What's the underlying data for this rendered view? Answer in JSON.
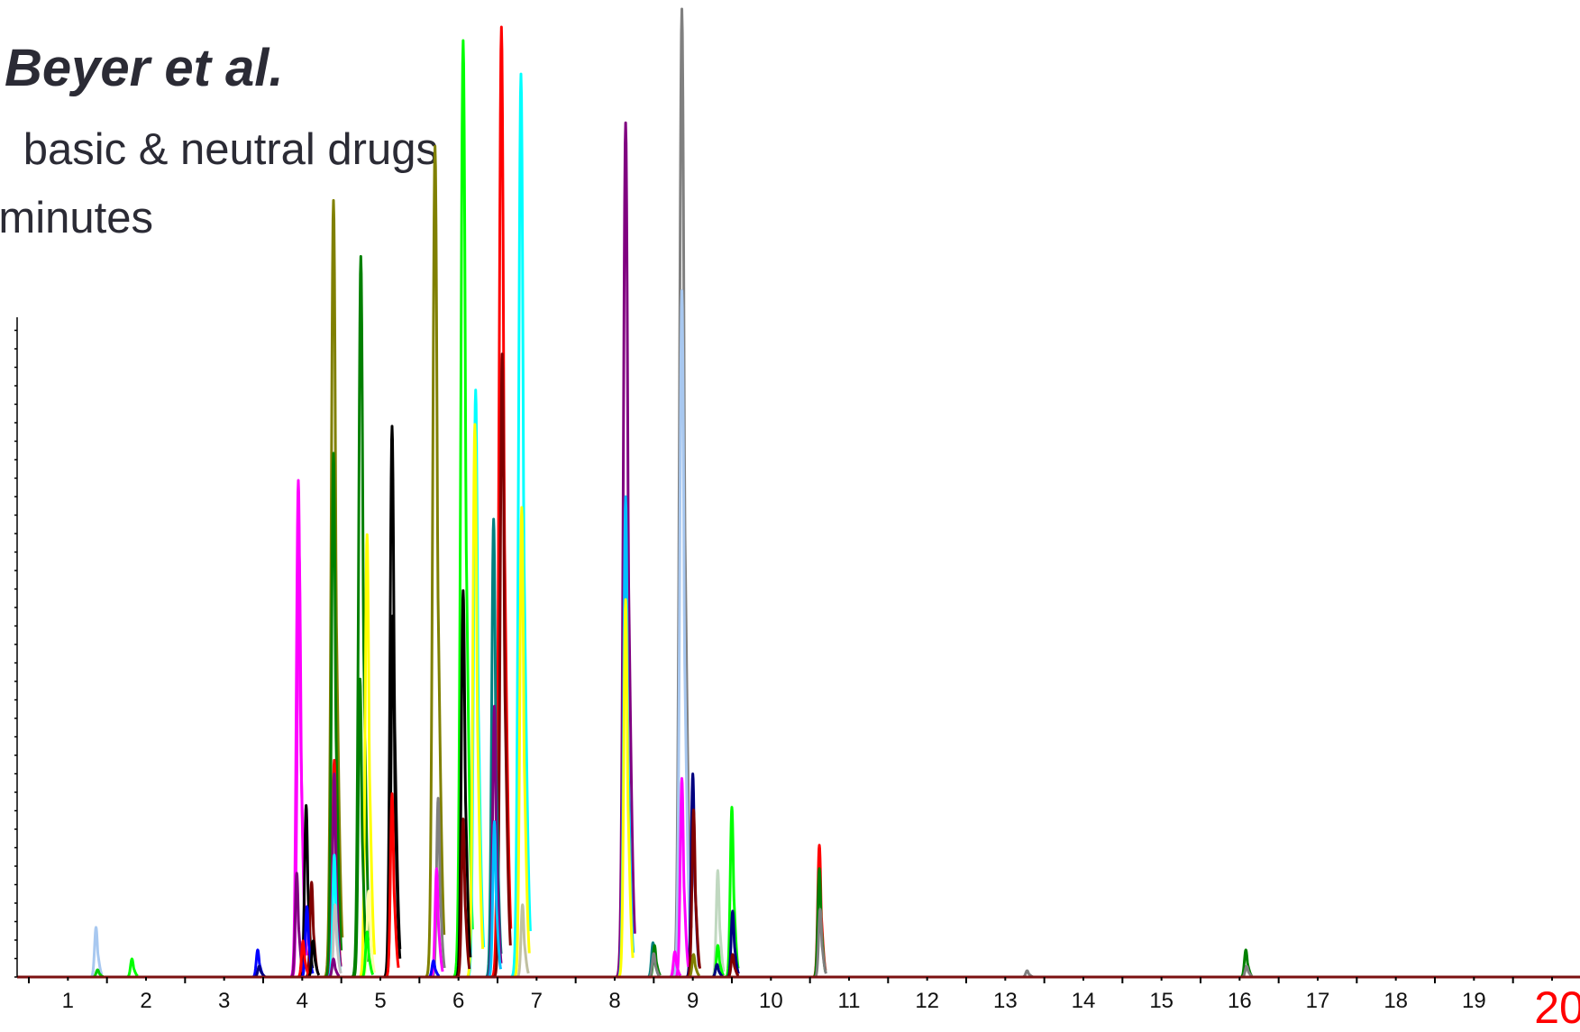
{
  "header": {
    "title": "Beyer et al.",
    "subtitle_line1": "basic & neutral drugs",
    "subtitle_line2": "minutes"
  },
  "chart_data": {
    "type": "line",
    "xlim": [
      0.35,
      20.3
    ],
    "ylim": [
      0,
      1070
    ],
    "grid": false,
    "legend": "none",
    "x_ticks": [
      {
        "value": 1,
        "label": "1"
      },
      {
        "value": 2,
        "label": "2"
      },
      {
        "value": 3,
        "label": "3"
      },
      {
        "value": 4,
        "label": "4"
      },
      {
        "value": 5,
        "label": "5"
      },
      {
        "value": 6,
        "label": "6"
      },
      {
        "value": 7,
        "label": "7"
      },
      {
        "value": 8,
        "label": "8"
      },
      {
        "value": 9,
        "label": "9"
      },
      {
        "value": 10,
        "label": "10"
      },
      {
        "value": 11,
        "label": "11"
      },
      {
        "value": 12,
        "label": "12"
      },
      {
        "value": 13,
        "label": "13"
      },
      {
        "value": 14,
        "label": "14"
      },
      {
        "value": 15,
        "label": "15"
      },
      {
        "value": 16,
        "label": "16"
      },
      {
        "value": 17,
        "label": "17"
      },
      {
        "value": 18,
        "label": "18"
      },
      {
        "value": 19,
        "label": "19"
      },
      {
        "value": 20,
        "label": "20",
        "highlight": true
      }
    ],
    "peaks": [
      {
        "rt": 1.36,
        "height": 55,
        "color": "#a8c8f0"
      },
      {
        "rt": 1.38,
        "height": 8,
        "color": "#00cc00"
      },
      {
        "rt": 1.82,
        "height": 20,
        "color": "#00ff00"
      },
      {
        "rt": 3.43,
        "height": 30,
        "color": "#0000ff"
      },
      {
        "rt": 3.45,
        "height": 12,
        "color": "#000080"
      },
      {
        "rt": 3.95,
        "height": 550,
        "color": "#ff00ff"
      },
      {
        "rt": 3.96,
        "height": 470,
        "color": "#ff00ff"
      },
      {
        "rt": 3.93,
        "height": 115,
        "color": "#800080"
      },
      {
        "rt": 4.05,
        "height": 190,
        "color": "#000000"
      },
      {
        "rt": 4.06,
        "height": 78,
        "color": "#0000ff"
      },
      {
        "rt": 4.01,
        "height": 40,
        "color": "#ff0000"
      },
      {
        "rt": 4.12,
        "height": 105,
        "color": "#800000"
      },
      {
        "rt": 4.14,
        "height": 40,
        "color": "#000000"
      },
      {
        "rt": 4.4,
        "height": 860,
        "color": "#808000"
      },
      {
        "rt": 4.4,
        "height": 580,
        "color": "#008000"
      },
      {
        "rt": 4.41,
        "height": 240,
        "color": "#ff0000"
      },
      {
        "rt": 4.41,
        "height": 225,
        "color": "#800080"
      },
      {
        "rt": 4.41,
        "height": 135,
        "color": "#00ffff"
      },
      {
        "rt": 4.42,
        "height": 80,
        "color": "#c0c0c0"
      },
      {
        "rt": 4.4,
        "height": 20,
        "color": "#800080"
      },
      {
        "rt": 4.75,
        "height": 798,
        "color": "#008000"
      },
      {
        "rt": 4.74,
        "height": 330,
        "color": "#008000"
      },
      {
        "rt": 4.83,
        "height": 490,
        "color": "#ffff00"
      },
      {
        "rt": 4.85,
        "height": 95,
        "color": "#ffffaa"
      },
      {
        "rt": 4.83,
        "height": 50,
        "color": "#00ff00"
      },
      {
        "rt": 5.15,
        "height": 610,
        "color": "#000000"
      },
      {
        "rt": 5.16,
        "height": 400,
        "color": "#000000"
      },
      {
        "rt": 5.15,
        "height": 203,
        "color": "#ff0000"
      },
      {
        "rt": 5.7,
        "height": 920,
        "color": "#808000"
      },
      {
        "rt": 5.74,
        "height": 198,
        "color": "#808080"
      },
      {
        "rt": 5.72,
        "height": 120,
        "color": "#ff00ff"
      },
      {
        "rt": 5.68,
        "height": 18,
        "color": "#0000ff"
      },
      {
        "rt": 6.06,
        "height": 1037,
        "color": "#00ff00"
      },
      {
        "rt": 6.06,
        "height": 428,
        "color": "#000000"
      },
      {
        "rt": 6.06,
        "height": 175,
        "color": "#800000"
      },
      {
        "rt": 6.22,
        "height": 650,
        "color": "#00ffff"
      },
      {
        "rt": 6.21,
        "height": 612,
        "color": "#ffff00"
      },
      {
        "rt": 6.45,
        "height": 507,
        "color": "#008080"
      },
      {
        "rt": 6.46,
        "height": 300,
        "color": "#800080"
      },
      {
        "rt": 6.46,
        "height": 172,
        "color": "#00bfff"
      },
      {
        "rt": 6.55,
        "height": 1052,
        "color": "#ff0000"
      },
      {
        "rt": 6.56,
        "height": 690,
        "color": "#800000"
      },
      {
        "rt": 6.8,
        "height": 1000,
        "color": "#00ffff"
      },
      {
        "rt": 6.81,
        "height": 520,
        "color": "#ffff00"
      },
      {
        "rt": 6.82,
        "height": 80,
        "color": "#c0c0a0"
      },
      {
        "rt": 8.14,
        "height": 946,
        "color": "#800080"
      },
      {
        "rt": 8.14,
        "height": 532,
        "color": "#00bfff"
      },
      {
        "rt": 8.14,
        "height": 418,
        "color": "#ffff00"
      },
      {
        "rt": 8.49,
        "height": 38,
        "color": "#008080"
      },
      {
        "rt": 8.51,
        "height": 35,
        "color": "#008000"
      },
      {
        "rt": 8.5,
        "height": 26,
        "color": "#808080"
      },
      {
        "rt": 8.77,
        "height": 28,
        "color": "#ff00ff"
      },
      {
        "rt": 8.86,
        "height": 1072,
        "color": "#808080"
      },
      {
        "rt": 8.86,
        "height": 760,
        "color": "#a8c8f0"
      },
      {
        "rt": 8.86,
        "height": 220,
        "color": "#ff00ff"
      },
      {
        "rt": 9.0,
        "height": 225,
        "color": "#000080"
      },
      {
        "rt": 9.01,
        "height": 185,
        "color": "#800000"
      },
      {
        "rt": 9.01,
        "height": 25,
        "color": "#808000"
      },
      {
        "rt": 9.32,
        "height": 118,
        "color": "#c0d8c0"
      },
      {
        "rt": 9.32,
        "height": 35,
        "color": "#00ff00"
      },
      {
        "rt": 9.31,
        "height": 14,
        "color": "#000080"
      },
      {
        "rt": 9.5,
        "height": 188,
        "color": "#00ff00"
      },
      {
        "rt": 9.51,
        "height": 73,
        "color": "#000080"
      },
      {
        "rt": 9.51,
        "height": 25,
        "color": "#800000"
      },
      {
        "rt": 10.62,
        "height": 146,
        "color": "#ff0000"
      },
      {
        "rt": 10.62,
        "height": 120,
        "color": "#008000"
      },
      {
        "rt": 10.63,
        "height": 75,
        "color": "#808080"
      },
      {
        "rt": 13.28,
        "height": 7,
        "color": "#808080"
      },
      {
        "rt": 16.08,
        "height": 30,
        "color": "#008000"
      },
      {
        "rt": 16.09,
        "height": 12,
        "color": "#808080"
      }
    ],
    "colors": {
      "axis": "#000000",
      "baseline": "#7b1010",
      "highlight_label": "#ff0000"
    }
  }
}
